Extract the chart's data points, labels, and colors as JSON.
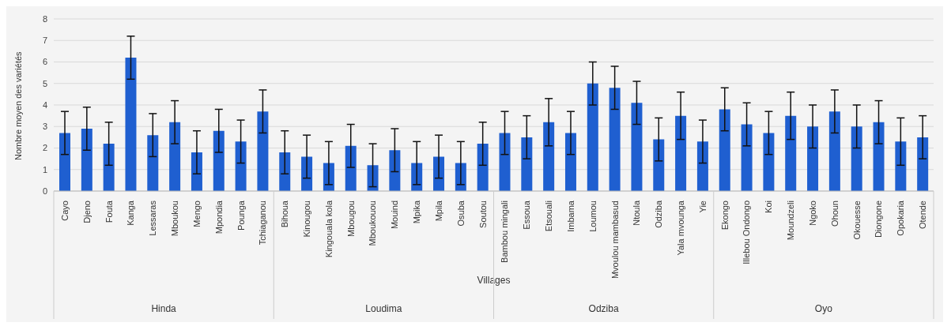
{
  "chart_data": {
    "type": "bar",
    "xlabel": "Villages",
    "ylabel": "Nombre moyen des variétés",
    "categories": [
      "Cayo",
      "Djeno",
      "Fouta",
      "Kanga",
      "Lessaras",
      "Mboukou",
      "Mengo",
      "Mpondia",
      "Pounga",
      "Tchiaganou",
      "Bihoua",
      "Kinougou",
      "Kingouala kola",
      "Mbougou",
      "Mboukouou",
      "Mouind",
      "Mpika",
      "Mpila",
      "Osuba",
      "Soutou",
      "Bambou mingali",
      "Essoua",
      "Etsouali",
      "Imbama",
      "Loumou",
      "Mvoulou mambasud",
      "Ntoula",
      "Odziba",
      "Yala mvounga",
      "Yie",
      "Ekongo",
      "Illebou Ondongo",
      "Koi",
      "Moundzeli",
      "Ngoko",
      "Ohoun",
      "Okouesse",
      "Diongone",
      "Opokaria",
      "Otende"
    ],
    "values": [
      2.7,
      2.9,
      2.2,
      6.2,
      2.6,
      3.2,
      1.8,
      2.8,
      2.3,
      3.7,
      1.8,
      1.6,
      1.3,
      2.1,
      1.2,
      1.9,
      1.3,
      1.6,
      1.3,
      2.2,
      2.7,
      2.5,
      3.2,
      2.7,
      5.0,
      4.8,
      4.1,
      2.4,
      3.5,
      2.3,
      3.8,
      3.1,
      2.7,
      3.5,
      3.0,
      3.7,
      3.0,
      3.2,
      2.3,
      2.5
    ],
    "errors": [
      1.0,
      1.0,
      1.0,
      1.0,
      1.0,
      1.0,
      1.0,
      1.0,
      1.0,
      1.0,
      1.0,
      1.0,
      1.0,
      1.0,
      1.0,
      1.0,
      1.0,
      1.0,
      1.0,
      1.0,
      1.0,
      1.0,
      1.1,
      1.0,
      1.0,
      1.0,
      1.0,
      1.0,
      1.1,
      1.0,
      1.0,
      1.0,
      1.0,
      1.1,
      1.0,
      1.0,
      1.0,
      1.0,
      1.1,
      1.0
    ],
    "color": "#1f5fd0",
    "ylim": [
      0,
      8
    ],
    "yticks": [
      0,
      1,
      2,
      3,
      4,
      5,
      6,
      7,
      8
    ],
    "grid": "y",
    "annotations": [
      "Hinda",
      "Loudima",
      "Odziba",
      "Oyo"
    ]
  }
}
